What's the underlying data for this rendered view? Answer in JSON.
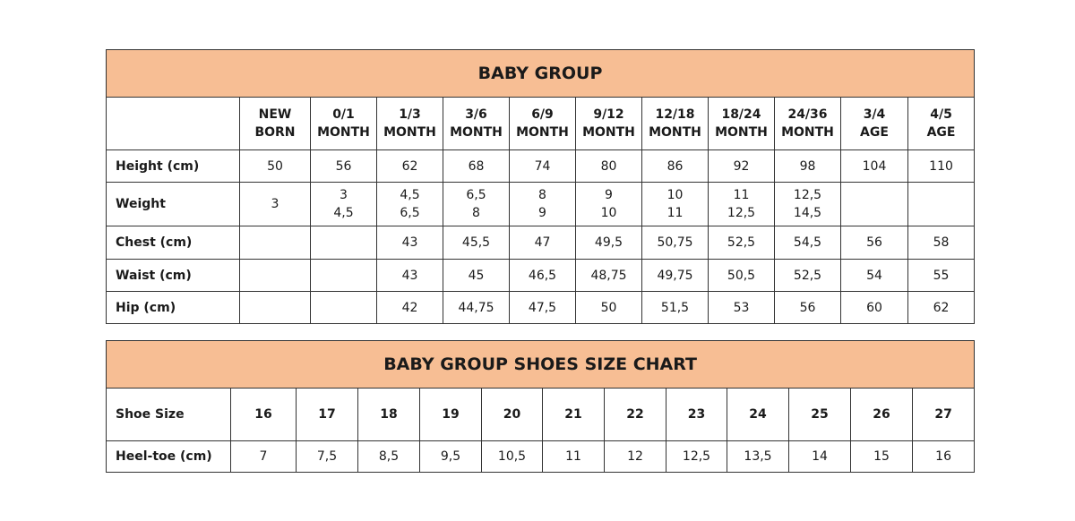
{
  "size_chart": {
    "title": "BABY GROUP",
    "columns": [
      [
        "NEW",
        "BORN"
      ],
      [
        "0/1",
        "MONTH"
      ],
      [
        "1/3",
        "MONTH"
      ],
      [
        "3/6",
        "MONTH"
      ],
      [
        "6/9",
        "MONTH"
      ],
      [
        "9/12",
        "MONTH"
      ],
      [
        "12/18",
        "MONTH"
      ],
      [
        "18/24",
        "MONTH"
      ],
      [
        "24/36",
        "MONTH"
      ],
      [
        "3/4",
        "AGE"
      ],
      [
        "4/5",
        "AGE"
      ]
    ],
    "rows": [
      {
        "label": "Height (cm)",
        "values": [
          [
            "50"
          ],
          [
            "56"
          ],
          [
            "62"
          ],
          [
            "68"
          ],
          [
            "74"
          ],
          [
            "80"
          ],
          [
            "86"
          ],
          [
            "92"
          ],
          [
            "98"
          ],
          [
            "104"
          ],
          [
            "110"
          ]
        ]
      },
      {
        "label": "Weight",
        "values": [
          [
            "3"
          ],
          [
            "3",
            "4,5"
          ],
          [
            "4,5",
            "6,5"
          ],
          [
            "6,5",
            "8"
          ],
          [
            "8",
            "9"
          ],
          [
            "9",
            "10"
          ],
          [
            "10",
            "11"
          ],
          [
            "11",
            "12,5"
          ],
          [
            "12,5",
            "14,5"
          ],
          [],
          []
        ]
      },
      {
        "label": "Chest (cm)",
        "values": [
          [],
          [],
          [
            "43"
          ],
          [
            "45,5"
          ],
          [
            "47"
          ],
          [
            "49,5"
          ],
          [
            "50,75"
          ],
          [
            "52,5"
          ],
          [
            "54,5"
          ],
          [
            "56"
          ],
          [
            "58"
          ]
        ]
      },
      {
        "label": "Waist (cm)",
        "values": [
          [],
          [],
          [
            "43"
          ],
          [
            "45"
          ],
          [
            "46,5"
          ],
          [
            "48,75"
          ],
          [
            "49,75"
          ],
          [
            "50,5"
          ],
          [
            "52,5"
          ],
          [
            "54"
          ],
          [
            "55"
          ]
        ]
      },
      {
        "label": "Hip (cm)",
        "values": [
          [],
          [],
          [
            "42"
          ],
          [
            "44,75"
          ],
          [
            "47,5"
          ],
          [
            "50"
          ],
          [
            "51,5"
          ],
          [
            "53"
          ],
          [
            "56"
          ],
          [
            "60"
          ],
          [
            "62"
          ]
        ]
      }
    ]
  },
  "shoes_chart": {
    "title": "BABY GROUP SHOES SIZE CHART",
    "size_label": "Shoe Size",
    "sizes": [
      "16",
      "17",
      "18",
      "19",
      "20",
      "21",
      "22",
      "23",
      "24",
      "25",
      "26",
      "27"
    ],
    "heel_label": "Heel-toe (cm)",
    "heel_toe": [
      "7",
      "7,5",
      "8,5",
      "9,5",
      "10,5",
      "11",
      "12",
      "12,5",
      "13,5",
      "14",
      "15",
      "16"
    ]
  },
  "colors": {
    "header_bg": "#F7BE94",
    "border": "#333333"
  }
}
